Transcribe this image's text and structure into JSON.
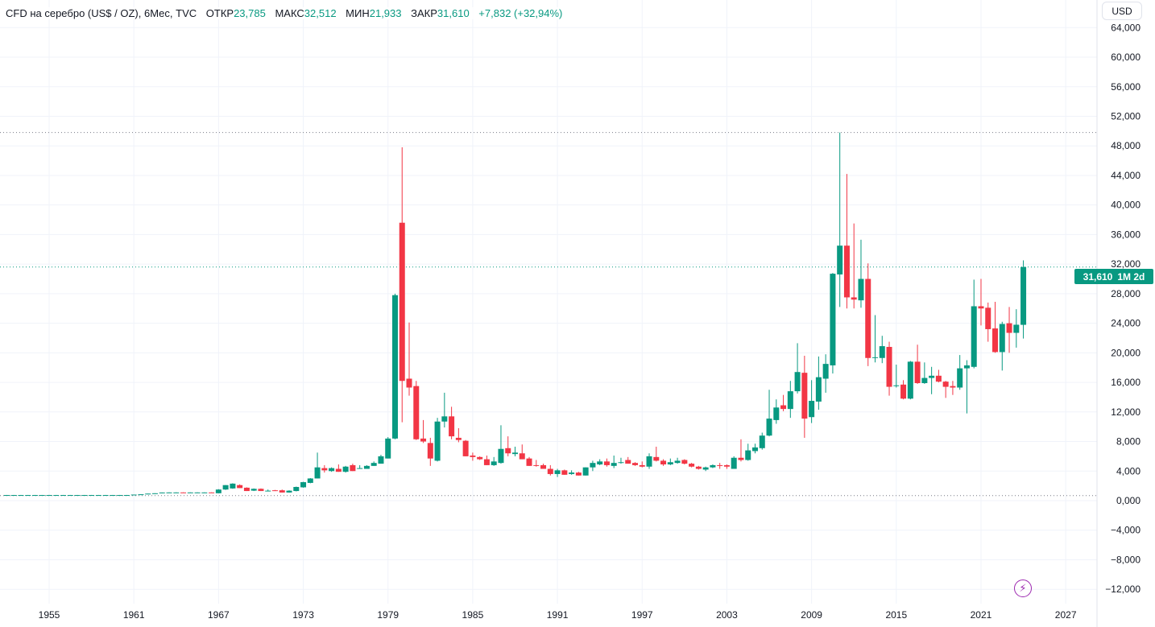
{
  "legend": {
    "symbol": "CFD на серебро (US$ / OZ), 6Мес, TVC",
    "open_label": "ОТКР",
    "open": "23,785",
    "high_label": "МАКС",
    "high": "32,512",
    "low_label": "МИН",
    "low": "21,933",
    "close_label": "ЗАКР",
    "close": "31,610",
    "change": "+7,832 (+32,94%)"
  },
  "currency_button": "USD",
  "price_tag": {
    "price": "31,610",
    "countdown": "1M 2d"
  },
  "colors": {
    "up": "#089981",
    "down": "#F23645",
    "grid": "#f0f3fa",
    "accent": "#9c27b0"
  },
  "icons": {
    "replay": "lightning-icon"
  },
  "chart_data": {
    "type": "candlestick",
    "title": "CFD на серебро (US$ / OZ), 6Мес, TVC",
    "interval": "6M",
    "ylim": [
      -13,
      65
    ],
    "xlim": [
      1951.5,
      2029.5
    ],
    "y_ticks": [
      -12,
      -8,
      -4,
      0,
      4,
      8,
      12,
      16,
      20,
      24,
      28,
      32,
      36,
      40,
      44,
      48,
      52,
      56,
      60,
      64
    ],
    "y_tick_labels": [
      "−12,000",
      "−8,000",
      "−4,000",
      "0,000",
      "4,000",
      "8,000",
      "12,000",
      "16,000",
      "20,000",
      "24,000",
      "28,000",
      "32,000",
      "36,000",
      "40,000",
      "44,000",
      "48,000",
      "52,000",
      "56,000",
      "60,000",
      "64,000"
    ],
    "x_ticks": [
      1955,
      1961,
      1967,
      1973,
      1979,
      1985,
      1991,
      1997,
      2003,
      2009,
      2015,
      2021,
      2027
    ],
    "x_tick_labels": [
      "1955",
      "1961",
      "1967",
      "1973",
      "1979",
      "1985",
      "1991",
      "1997",
      "2003",
      "2009",
      "2015",
      "2021",
      "2027"
    ],
    "grid": true,
    "reference_lines": {
      "max_high": 49.8,
      "last_price": 31.61,
      "min_low": 0.68
    },
    "candles_fields": [
      "t",
      "open",
      "high",
      "low",
      "close"
    ],
    "candles": [
      [
        1952.0,
        0.76,
        0.77,
        0.75,
        0.76
      ],
      [
        1952.5,
        0.76,
        0.77,
        0.75,
        0.76
      ],
      [
        1953.0,
        0.76,
        0.77,
        0.75,
        0.76
      ],
      [
        1953.5,
        0.76,
        0.77,
        0.75,
        0.76
      ],
      [
        1954.0,
        0.76,
        0.77,
        0.75,
        0.76
      ],
      [
        1954.5,
        0.76,
        0.77,
        0.75,
        0.76
      ],
      [
        1955.0,
        0.76,
        0.77,
        0.75,
        0.76
      ],
      [
        1955.5,
        0.76,
        0.77,
        0.75,
        0.76
      ],
      [
        1956.0,
        0.76,
        0.77,
        0.75,
        0.76
      ],
      [
        1956.5,
        0.76,
        0.77,
        0.75,
        0.76
      ],
      [
        1957.0,
        0.76,
        0.77,
        0.75,
        0.76
      ],
      [
        1957.5,
        0.76,
        0.77,
        0.75,
        0.76
      ],
      [
        1958.0,
        0.76,
        0.77,
        0.75,
        0.76
      ],
      [
        1958.5,
        0.76,
        0.77,
        0.75,
        0.76
      ],
      [
        1959.0,
        0.76,
        0.77,
        0.75,
        0.76
      ],
      [
        1959.5,
        0.76,
        0.77,
        0.75,
        0.76
      ],
      [
        1960.0,
        0.76,
        0.77,
        0.75,
        0.76
      ],
      [
        1960.5,
        0.76,
        0.77,
        0.75,
        0.76
      ],
      [
        1961.0,
        0.76,
        0.82,
        0.76,
        0.82
      ],
      [
        1961.5,
        0.82,
        0.86,
        0.82,
        0.86
      ],
      [
        1962.0,
        0.86,
        0.95,
        0.86,
        0.95
      ],
      [
        1962.5,
        0.95,
        1.0,
        0.95,
        1.0
      ],
      [
        1963.0,
        1.0,
        1.1,
        1.0,
        1.1
      ],
      [
        1963.5,
        1.1,
        1.12,
        1.08,
        1.11
      ],
      [
        1964.0,
        1.1,
        1.12,
        1.08,
        1.11
      ],
      [
        1964.5,
        1.11,
        1.12,
        1.08,
        1.09
      ],
      [
        1965.0,
        1.09,
        1.12,
        1.08,
        1.11
      ],
      [
        1965.5,
        1.1,
        1.12,
        1.08,
        1.11
      ],
      [
        1966.0,
        1.1,
        1.12,
        1.08,
        1.11
      ],
      [
        1966.5,
        1.11,
        1.12,
        1.08,
        1.09
      ],
      [
        1967.0,
        1.0,
        1.55,
        1.0,
        1.5
      ],
      [
        1967.5,
        1.5,
        2.1,
        1.45,
        2.1
      ],
      [
        1968.0,
        1.65,
        2.35,
        1.6,
        2.3
      ],
      [
        1968.5,
        2.1,
        2.2,
        1.7,
        1.7
      ],
      [
        1969.0,
        1.75,
        1.8,
        1.3,
        1.3
      ],
      [
        1969.5,
        1.35,
        1.65,
        1.3,
        1.6
      ],
      [
        1970.0,
        1.6,
        1.65,
        1.3,
        1.3
      ],
      [
        1970.5,
        1.3,
        1.5,
        1.28,
        1.35
      ],
      [
        1971.0,
        1.4,
        1.45,
        1.3,
        1.3
      ],
      [
        1971.5,
        1.4,
        1.5,
        1.1,
        1.1
      ],
      [
        1972.0,
        1.1,
        1.4,
        1.08,
        1.35
      ],
      [
        1972.5,
        1.3,
        1.9,
        1.25,
        1.85
      ],
      [
        1973.0,
        1.8,
        2.55,
        1.75,
        2.5
      ],
      [
        1973.5,
        2.4,
        3.05,
        2.35,
        3.0
      ],
      [
        1974.0,
        3.0,
        6.5,
        3.0,
        4.5
      ],
      [
        1974.5,
        4.4,
        4.8,
        3.8,
        4.1
      ],
      [
        1975.0,
        4.0,
        4.5,
        3.9,
        4.4
      ],
      [
        1975.5,
        4.3,
        4.9,
        3.9,
        3.9
      ],
      [
        1976.0,
        3.9,
        4.7,
        3.8,
        4.6
      ],
      [
        1976.5,
        4.8,
        5.0,
        4.0,
        4.0
      ],
      [
        1977.0,
        4.3,
        4.8,
        4.3,
        4.4
      ],
      [
        1977.5,
        4.3,
        4.8,
        4.3,
        4.7
      ],
      [
        1978.0,
        4.7,
        5.3,
        4.7,
        5.1
      ],
      [
        1978.5,
        5.0,
        6.2,
        5.0,
        6.0
      ],
      [
        1979.0,
        5.7,
        8.6,
        5.7,
        8.4
      ],
      [
        1979.5,
        8.4,
        28.0,
        8.3,
        27.8
      ],
      [
        1980.0,
        37.6,
        47.8,
        10.6,
        16.2
      ],
      [
        1980.5,
        16.5,
        24.1,
        14.2,
        15.3
      ],
      [
        1981.0,
        15.5,
        16.2,
        8.2,
        8.3
      ],
      [
        1981.5,
        8.4,
        10.9,
        7.8,
        8.0
      ],
      [
        1982.0,
        7.8,
        8.5,
        4.7,
        5.7
      ],
      [
        1982.5,
        5.4,
        11.2,
        5.3,
        10.7
      ],
      [
        1983.0,
        10.7,
        14.6,
        9.9,
        11.4
      ],
      [
        1983.5,
        11.4,
        12.7,
        8.3,
        8.7
      ],
      [
        1984.0,
        8.5,
        9.8,
        7.9,
        8.2
      ],
      [
        1984.5,
        8.1,
        8.2,
        6.0,
        6.0
      ],
      [
        1985.0,
        6.1,
        6.5,
        5.4,
        5.9
      ],
      [
        1985.5,
        5.9,
        6.0,
        5.5,
        5.6
      ],
      [
        1986.0,
        5.6,
        6.1,
        4.8,
        4.8
      ],
      [
        1986.5,
        4.8,
        5.9,
        4.7,
        5.3
      ],
      [
        1987.0,
        5.1,
        10.2,
        5.0,
        7.0
      ],
      [
        1987.5,
        7.1,
        8.7,
        6.0,
        6.4
      ],
      [
        1988.0,
        6.3,
        7.3,
        6.0,
        6.5
      ],
      [
        1988.5,
        6.4,
        7.6,
        5.6,
        5.6
      ],
      [
        1989.0,
        5.7,
        5.9,
        4.7,
        4.7
      ],
      [
        1989.5,
        4.8,
        5.5,
        4.6,
        4.7
      ],
      [
        1990.0,
        4.8,
        5.0,
        4.3,
        4.3
      ],
      [
        1990.5,
        4.3,
        4.8,
        3.4,
        3.6
      ],
      [
        1991.0,
        3.6,
        4.3,
        3.2,
        4.1
      ],
      [
        1991.5,
        4.1,
        4.2,
        3.5,
        3.5
      ],
      [
        1992.0,
        3.6,
        4.1,
        3.5,
        3.8
      ],
      [
        1992.5,
        3.8,
        3.9,
        3.4,
        3.4
      ],
      [
        1993.0,
        3.4,
        4.5,
        3.4,
        4.5
      ],
      [
        1993.5,
        4.5,
        5.4,
        4.0,
        5.1
      ],
      [
        1994.0,
        4.9,
        5.6,
        4.8,
        5.3
      ],
      [
        1994.5,
        5.3,
        5.7,
        4.6,
        4.8
      ],
      [
        1995.0,
        4.7,
        6.1,
        4.4,
        5.1
      ],
      [
        1995.5,
        5.1,
        5.8,
        5.0,
        5.2
      ],
      [
        1996.0,
        5.5,
        5.9,
        5.0,
        5.0
      ],
      [
        1996.5,
        5.1,
        5.2,
        4.7,
        4.8
      ],
      [
        1997.0,
        4.8,
        5.3,
        4.5,
        4.6
      ],
      [
        1997.5,
        4.6,
        6.4,
        4.3,
        6.0
      ],
      [
        1998.0,
        5.9,
        7.3,
        5.3,
        5.4
      ],
      [
        1998.5,
        5.4,
        5.6,
        4.7,
        4.9
      ],
      [
        1999.0,
        4.9,
        5.7,
        4.8,
        5.2
      ],
      [
        1999.5,
        5.1,
        5.8,
        5.0,
        5.4
      ],
      [
        2000.0,
        5.5,
        5.6,
        4.9,
        5.0
      ],
      [
        2000.5,
        5.0,
        5.1,
        4.5,
        4.6
      ],
      [
        2001.0,
        4.6,
        4.7,
        4.2,
        4.3
      ],
      [
        2001.5,
        4.2,
        4.6,
        4.0,
        4.5
      ],
      [
        2002.0,
        4.5,
        4.9,
        4.4,
        4.8
      ],
      [
        2002.5,
        4.8,
        5.1,
        4.3,
        4.7
      ],
      [
        2003.0,
        4.8,
        4.9,
        4.3,
        4.6
      ],
      [
        2003.5,
        4.3,
        6.0,
        4.3,
        5.8
      ],
      [
        2004.0,
        5.8,
        8.3,
        5.3,
        5.5
      ],
      [
        2004.5,
        5.5,
        7.7,
        5.4,
        6.8
      ],
      [
        2005.0,
        6.7,
        7.7,
        6.4,
        7.2
      ],
      [
        2005.5,
        7.1,
        9.2,
        6.9,
        8.8
      ],
      [
        2006.0,
        8.8,
        15.0,
        8.7,
        11.1
      ],
      [
        2006.5,
        10.9,
        13.7,
        10.4,
        12.6
      ],
      [
        2007.0,
        12.9,
        14.3,
        12.1,
        12.4
      ],
      [
        2007.5,
        12.4,
        16.2,
        11.2,
        14.8
      ],
      [
        2008.0,
        14.8,
        21.3,
        14.5,
        17.4
      ],
      [
        2008.5,
        17.3,
        19.6,
        8.5,
        11.1
      ],
      [
        2009.0,
        11.3,
        16.3,
        10.5,
        13.5
      ],
      [
        2009.5,
        13.4,
        19.5,
        12.3,
        16.7
      ],
      [
        2010.0,
        16.5,
        19.8,
        14.6,
        18.5
      ],
      [
        2010.5,
        18.3,
        30.8,
        17.2,
        30.7
      ],
      [
        2011.0,
        30.6,
        49.8,
        26.2,
        34.5
      ],
      [
        2011.5,
        34.5,
        44.2,
        26.0,
        27.5
      ],
      [
        2012.0,
        27.5,
        37.5,
        26.0,
        27.2
      ],
      [
        2012.5,
        27.1,
        35.3,
        26.1,
        30.0
      ],
      [
        2013.0,
        30.0,
        32.1,
        18.2,
        19.3
      ],
      [
        2013.5,
        19.4,
        25.1,
        18.7,
        19.4
      ],
      [
        2014.0,
        19.3,
        22.3,
        18.6,
        20.9
      ],
      [
        2014.5,
        20.8,
        21.5,
        14.2,
        15.4
      ],
      [
        2015.0,
        15.6,
        18.4,
        15.3,
        15.6
      ],
      [
        2015.5,
        15.7,
        16.3,
        13.7,
        13.8
      ],
      [
        2016.0,
        13.8,
        18.9,
        13.7,
        18.8
      ],
      [
        2016.5,
        18.8,
        21.1,
        15.8,
        15.9
      ],
      [
        2017.0,
        15.9,
        18.7,
        15.8,
        16.6
      ],
      [
        2017.5,
        16.6,
        18.1,
        14.4,
        16.9
      ],
      [
        2018.0,
        16.9,
        17.7,
        16.0,
        16.1
      ],
      [
        2018.5,
        16.1,
        16.2,
        13.9,
        15.4
      ],
      [
        2019.0,
        15.5,
        16.2,
        14.3,
        15.3
      ],
      [
        2019.5,
        15.3,
        19.7,
        15.0,
        17.9
      ],
      [
        2020.0,
        17.9,
        19.0,
        11.8,
        18.3
      ],
      [
        2020.5,
        18.1,
        29.9,
        17.9,
        26.3
      ],
      [
        2021.0,
        26.3,
        30.0,
        23.7,
        26.0
      ],
      [
        2021.5,
        26.1,
        26.8,
        21.5,
        23.2
      ],
      [
        2022.0,
        23.3,
        26.9,
        20.0,
        20.1
      ],
      [
        2022.5,
        20.1,
        24.2,
        17.6,
        23.9
      ],
      [
        2023.0,
        24.0,
        26.2,
        20.0,
        22.7
      ],
      [
        2023.5,
        22.7,
        25.9,
        20.7,
        23.8
      ],
      [
        2024.0,
        23.785,
        32.512,
        21.933,
        31.61
      ]
    ]
  }
}
